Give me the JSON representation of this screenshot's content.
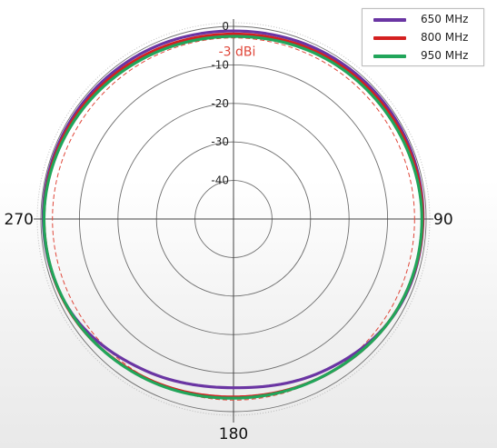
{
  "chart_data": {
    "type": "polar-line",
    "title": "",
    "radial_axis": {
      "unit": "dBi",
      "range": [
        -50,
        0
      ],
      "ticks": [
        0,
        -10,
        -20,
        -30,
        -40
      ],
      "tick_labels": [
        "0",
        "-10",
        "-20",
        "-30",
        "-40"
      ]
    },
    "angular_axis": {
      "direction": "clockwise",
      "zero": "top",
      "labels": [
        "90",
        "180",
        "270"
      ],
      "label_angles": [
        90,
        180,
        270
      ]
    },
    "grid": true,
    "reference_circle": {
      "value": -3,
      "label": "-3 dBi",
      "color": "#e0473a",
      "style": "dashed"
    },
    "legend_position": "top-right",
    "series": [
      {
        "name": "650 MHz",
        "color": "#6a35a3",
        "angles": [
          0,
          30,
          60,
          90,
          120,
          150,
          180,
          210,
          240,
          270,
          300,
          330
        ],
        "values": [
          -1.2,
          -0.8,
          -0.6,
          -0.8,
          -1.4,
          -4.2,
          -6.2,
          -4.5,
          -1.4,
          -0.6,
          -0.6,
          -0.8
        ]
      },
      {
        "name": "800 MHz",
        "color": "#d42020",
        "angles": [
          0,
          30,
          60,
          90,
          120,
          150,
          180,
          210,
          240,
          270,
          300,
          330
        ],
        "values": [
          -2.0,
          -1.5,
          -1.1,
          -0.9,
          -1.5,
          -3.0,
          -3.8,
          -2.8,
          -1.2,
          -0.8,
          -1.0,
          -1.6
        ]
      },
      {
        "name": "950 MHz",
        "color": "#21a55a",
        "angles": [
          0,
          30,
          60,
          90,
          120,
          150,
          180,
          210,
          240,
          270,
          300,
          330
        ],
        "values": [
          -2.6,
          -2.0,
          -1.6,
          -1.1,
          -1.5,
          -3.0,
          -3.5,
          -2.6,
          -1.3,
          -0.8,
          -1.4,
          -2.2
        ]
      }
    ]
  }
}
